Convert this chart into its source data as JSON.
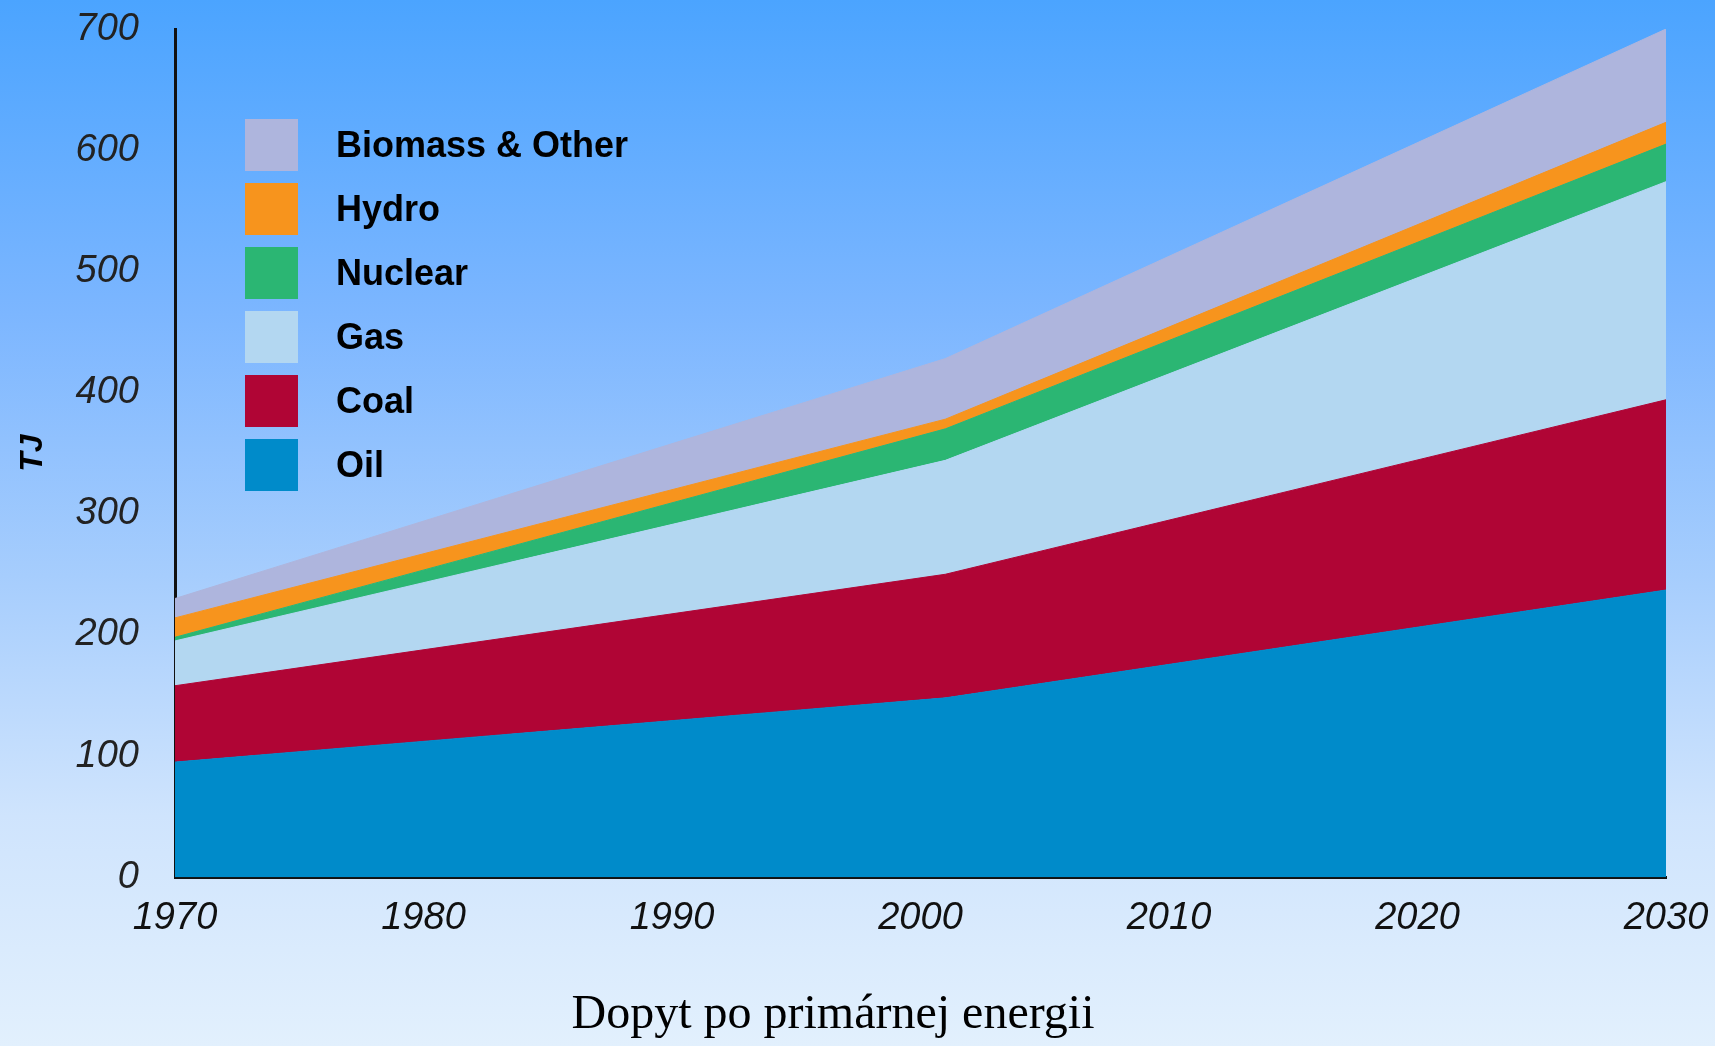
{
  "chart_data": {
    "type": "area",
    "title": "Dopyt po primárnej energii",
    "ylabel": "TJ",
    "x": [
      1970,
      2001,
      2030
    ],
    "xlim": [
      1970,
      2030
    ],
    "xticks": [
      1970,
      1980,
      1990,
      2000,
      2010,
      2020,
      2030
    ],
    "ylim": [
      0,
      700
    ],
    "yticks": [
      0,
      100,
      200,
      300,
      400,
      500,
      600,
      700
    ],
    "stacked": true,
    "grid": false,
    "legend": "top left",
    "series": [
      {
        "name": "Oil",
        "color": "#008bca",
        "values": [
          95,
          148,
          237
        ]
      },
      {
        "name": "Coal",
        "color": "#b00535",
        "values": [
          63,
          102,
          157
        ]
      },
      {
        "name": "Gas",
        "color": "#b3d7f1",
        "values": [
          37,
          94,
          180
        ]
      },
      {
        "name": "Nuclear",
        "color": "#2bb673",
        "values": [
          3,
          26,
          31
        ]
      },
      {
        "name": "Hydro",
        "color": "#f7941d",
        "values": [
          16,
          8,
          18
        ]
      },
      {
        "name": "Biomass & Other",
        "color": "#aeb5dd",
        "values": [
          16,
          50,
          77
        ]
      }
    ]
  }
}
